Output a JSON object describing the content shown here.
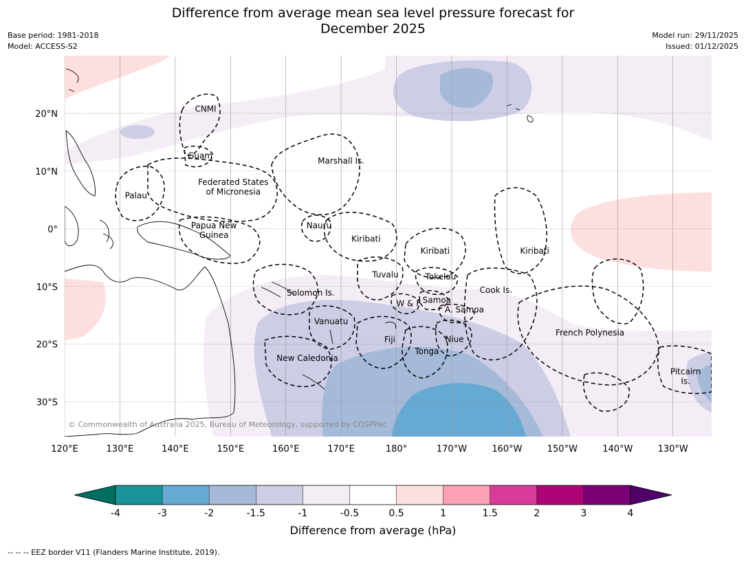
{
  "title_lines": [
    "Difference from average mean sea level pressure forecast for",
    "December 2025"
  ],
  "meta_left": [
    "Base period: 1981-2018",
    "Model: ACCESS-S2"
  ],
  "meta_right": [
    "Model run: 29/11/2025",
    "Issued: 01/12/2025"
  ],
  "map": {
    "lon_range_deg_east": [
      120,
      237
    ],
    "lat_range": [
      -36,
      30
    ],
    "lon_ticks": [
      {
        "lon": 120,
        "label": "120°E"
      },
      {
        "lon": 130,
        "label": "130°E"
      },
      {
        "lon": 140,
        "label": "140°E"
      },
      {
        "lon": 150,
        "label": "150°E"
      },
      {
        "lon": 160,
        "label": "160°E"
      },
      {
        "lon": 170,
        "label": "170°E"
      },
      {
        "lon": 180,
        "label": "180°"
      },
      {
        "lon": 190,
        "label": "170°W"
      },
      {
        "lon": 200,
        "label": "160°W"
      },
      {
        "lon": 210,
        "label": "150°W"
      },
      {
        "lon": 220,
        "label": "140°W"
      },
      {
        "lon": 230,
        "label": "130°W"
      }
    ],
    "lat_ticks": [
      {
        "lat": 20,
        "label": "20°N"
      },
      {
        "lat": 10,
        "label": "10°N"
      },
      {
        "lat": 0,
        "label": "0°"
      },
      {
        "lat": -10,
        "label": "10°S"
      },
      {
        "lat": -20,
        "label": "20°S"
      },
      {
        "lat": -30,
        "label": "30°S"
      }
    ],
    "regions": [
      {
        "lines": [
          "CNMI"
        ],
        "lon": 145.5,
        "lat": 20.3
      },
      {
        "lines": [
          "Guam"
        ],
        "lon": 144.5,
        "lat": 12.2
      },
      {
        "lines": [
          "Marshall Is."
        ],
        "lon": 170,
        "lat": 11.3
      },
      {
        "lines": [
          "Federated States",
          "of Micronesia"
        ],
        "lon": 150.5,
        "lat": 7.6
      },
      {
        "lines": [
          "Palau"
        ],
        "lon": 132.9,
        "lat": 5.3
      },
      {
        "lines": [
          "Nauru"
        ],
        "lon": 166,
        "lat": 0.1
      },
      {
        "lines": [
          "Papua New",
          "Guinea"
        ],
        "lon": 147,
        "lat": 0.1
      },
      {
        "lines": [
          "Kiribati"
        ],
        "lon": 174.5,
        "lat": -2.2
      },
      {
        "lines": [
          "Kiribati"
        ],
        "lon": 187,
        "lat": -4.3
      },
      {
        "lines": [
          "Kiribati"
        ],
        "lon": 205,
        "lat": -4.3
      },
      {
        "lines": [
          "Tuvalu"
        ],
        "lon": 178,
        "lat": -8.4
      },
      {
        "lines": [
          "Tokelau"
        ],
        "lon": 188,
        "lat": -8.8
      },
      {
        "lines": [
          "Cook Is."
        ],
        "lon": 198,
        "lat": -11.1
      },
      {
        "lines": [
          "Solomon Is."
        ],
        "lon": 164.5,
        "lat": -11.6
      },
      {
        "lines": [
          "Samoa"
        ],
        "lon": 187.3,
        "lat": -12.8
      },
      {
        "lines": [
          "W & F"
        ],
        "lon": 182.2,
        "lat": -13.4
      },
      {
        "lines": [
          "A. Samoa"
        ],
        "lon": 192.3,
        "lat": -14.5
      },
      {
        "lines": [
          "Vanuatu"
        ],
        "lon": 168.2,
        "lat": -16.5
      },
      {
        "lines": [
          "French Polynesia"
        ],
        "lon": 215,
        "lat": -18.5
      },
      {
        "lines": [
          "Fiji"
        ],
        "lon": 178.8,
        "lat": -19.7
      },
      {
        "lines": [
          "Niue"
        ],
        "lon": 190.5,
        "lat": -19.6
      },
      {
        "lines": [
          "Tonga"
        ],
        "lon": 185.5,
        "lat": -21.7
      },
      {
        "lines": [
          "New Caledonia"
        ],
        "lon": 163.9,
        "lat": -22.9
      },
      {
        "lines": [
          "Pitcairn",
          "Is."
        ],
        "lon": 232.3,
        "lat": -25.2
      }
    ],
    "copyright": "© Commonwealth of Australia 2025, Bureau of Meteorology, supported by COSPPac",
    "colors": {
      "gridline": "#999999",
      "coast": "#000000",
      "eez": "#000000"
    }
  },
  "colorbar": {
    "tick_labels": [
      "-4",
      "-3",
      "-2",
      "-1.5",
      "-1",
      "-0.5",
      "0.5",
      "1",
      "1.5",
      "2",
      "3",
      "4"
    ],
    "bin_colors": [
      "#1a9399",
      "#66aad4",
      "#a5b9d9",
      "#cdcde5",
      "#f4edf5",
      "#ffffff",
      "#fedfdf",
      "#fba0b7",
      "#da3a9c",
      "#ad0576",
      "#7b0077"
    ],
    "under_color": "#006f60",
    "over_color": "#4f0068",
    "label": "Difference from average (hPa)"
  },
  "footer": "--  --  -- EEZ border V11 (Flanders Marine Institute, 2019)."
}
